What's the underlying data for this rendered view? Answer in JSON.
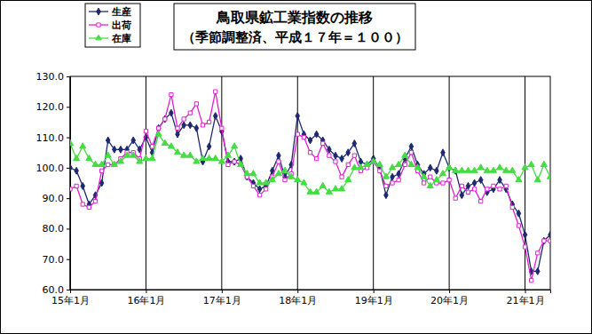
{
  "chart_data": {
    "type": "line",
    "title": "鳥取県鉱工業指数の推移",
    "subtitle": "（季節調整済、平成１７年＝１００）",
    "categories": [
      "15年1月",
      null,
      null,
      null,
      null,
      null,
      null,
      null,
      null,
      null,
      null,
      null,
      "16年1月",
      null,
      null,
      null,
      null,
      null,
      null,
      null,
      null,
      null,
      null,
      null,
      "17年1月",
      null,
      null,
      null,
      null,
      null,
      null,
      null,
      null,
      null,
      null,
      null,
      "18年1月",
      null,
      null,
      null,
      null,
      null,
      null,
      null,
      null,
      null,
      null,
      null,
      "19年1月",
      null,
      null,
      null,
      null,
      null,
      null,
      null,
      null,
      null,
      null,
      null,
      "20年1月",
      null,
      null,
      null,
      null,
      null,
      null,
      null,
      null,
      null,
      null,
      null,
      "21年1月",
      null,
      null,
      null,
      null
    ],
    "series": [
      {
        "name": "生産",
        "color": "#1f2a6e",
        "marker": "diamond",
        "values": [
          100,
          99,
          94,
          88,
          91,
          95,
          109,
          106,
          106,
          106,
          109,
          106,
          110,
          105,
          113,
          116,
          118,
          111,
          114,
          114,
          113,
          102,
          107,
          117,
          112,
          102,
          102,
          103,
          97,
          95,
          93,
          94,
          99,
          104,
          97,
          101,
          117,
          111,
          109,
          111,
          109,
          106,
          104,
          103,
          105,
          108,
          102,
          101,
          103,
          100,
          91,
          97,
          98,
          103,
          107,
          101,
          98,
          100,
          99,
          105,
          100,
          99,
          91,
          94,
          95,
          96,
          92,
          93,
          96,
          93,
          88,
          85,
          78,
          66,
          66,
          76,
          78
        ]
      },
      {
        "name": "出荷",
        "color": "#e020d0",
        "marker": "square",
        "values": [
          93,
          94,
          88,
          87,
          89,
          99,
          101,
          101,
          103,
          105,
          105,
          103,
          112,
          107,
          113,
          116,
          124,
          113,
          116,
          118,
          121,
          114,
          115,
          125,
          113,
          101,
          102,
          101,
          97,
          94,
          91,
          93,
          97,
          102,
          96,
          98,
          111,
          110,
          105,
          103,
          108,
          104,
          102,
          97,
          101,
          104,
          99,
          100,
          102,
          99,
          94,
          95,
          96,
          101,
          105,
          99,
          95,
          97,
          95,
          95,
          96,
          90,
          94,
          92,
          93,
          89,
          93,
          94,
          93,
          94,
          87,
          81,
          74,
          63,
          72,
          76,
          76
        ]
      },
      {
        "name": "在庫",
        "color": "#44dd44",
        "marker": "triangle",
        "values": [
          108,
          103,
          107,
          103,
          101,
          101,
          104,
          101,
          102,
          104,
          104,
          102,
          103,
          103,
          111,
          108,
          107,
          105,
          104,
          104,
          102,
          103,
          103,
          103,
          102,
          104,
          107,
          101,
          98,
          98,
          95,
          95,
          96,
          98,
          99,
          97,
          96,
          95,
          92,
          92,
          94,
          92,
          93,
          93,
          96,
          100,
          100,
          101,
          102,
          101,
          97,
          100,
          101,
          104,
          101,
          100,
          97,
          94,
          96,
          98,
          100,
          99,
          99,
          99,
          99,
          100,
          99,
          99,
          100,
          99,
          99,
          96,
          100,
          101,
          96,
          101,
          97
        ]
      }
    ],
    "ylim": [
      60,
      130
    ],
    "yticks": [
      {
        "value": 60,
        "label": "60.0"
      },
      {
        "value": 70,
        "label": "70.0"
      },
      {
        "value": 80,
        "label": "80.0"
      },
      {
        "value": 90,
        "label": "90.0"
      },
      {
        "value": 100,
        "label": "100.0"
      },
      {
        "value": 110,
        "label": "110.0"
      },
      {
        "value": 120,
        "label": "120.0"
      },
      {
        "value": 130,
        "label": "130.0"
      }
    ],
    "grid": "x",
    "legend": "upper left"
  }
}
